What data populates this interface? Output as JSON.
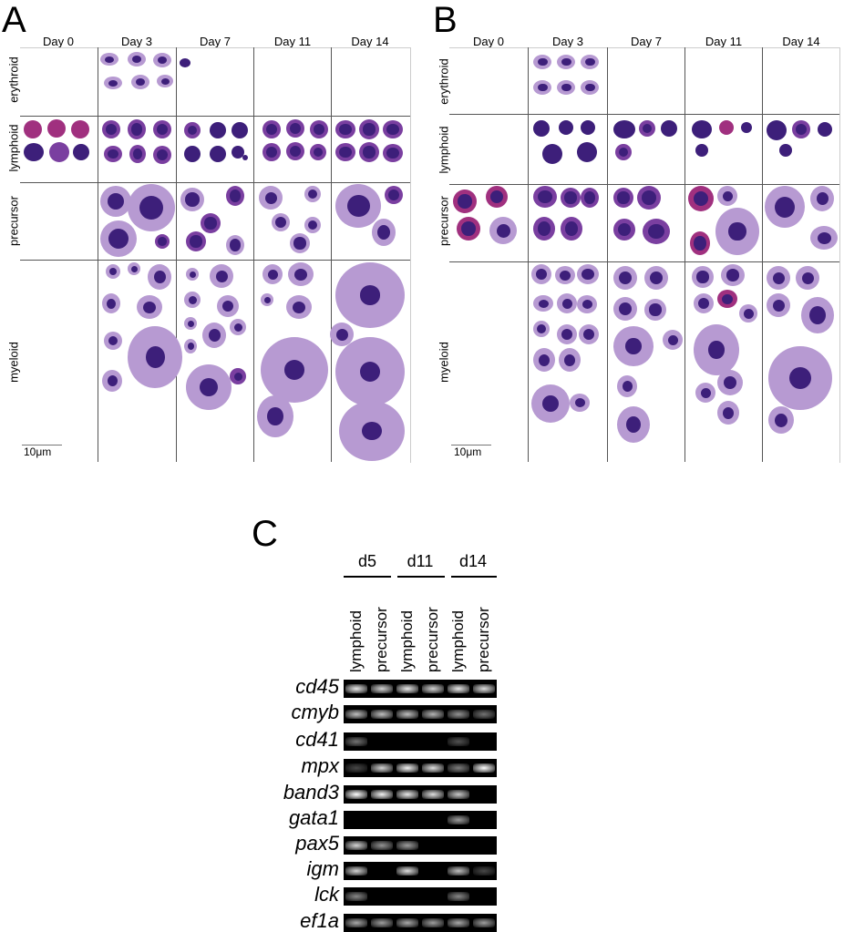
{
  "panels": {
    "A": {
      "letter": "A",
      "columns": [
        "Day 0",
        "Day 3",
        "Day 7",
        "Day 11",
        "Day 14"
      ],
      "rows": [
        "erythroid",
        "lymphoid",
        "precursor",
        "myeloid"
      ],
      "scale_label": "10μm"
    },
    "B": {
      "letter": "B",
      "columns": [
        "Day 0",
        "Day 3",
        "Day 7",
        "Day 11",
        "Day 14"
      ],
      "rows": [
        "erythroid",
        "lymphoid",
        "precursor",
        "myeloid"
      ],
      "scale_label": "10μm"
    },
    "C": {
      "letter": "C",
      "days": [
        "d5",
        "d11",
        "d14"
      ],
      "lanes": [
        "lymphoid",
        "precursor",
        "lymphoid",
        "precursor",
        "lymphoid",
        "precursor"
      ],
      "genes": [
        {
          "name": "cd45",
          "bands": [
            0.9,
            0.8,
            0.9,
            0.8,
            0.9,
            0.85
          ]
        },
        {
          "name": "cmyb",
          "bands": [
            0.7,
            0.7,
            0.7,
            0.65,
            0.5,
            0.35
          ]
        },
        {
          "name": "cd41",
          "bands": [
            0.35,
            0.0,
            0.0,
            0.0,
            0.2,
            0.0
          ]
        },
        {
          "name": "mpx",
          "bands": [
            0.15,
            0.8,
            0.95,
            0.85,
            0.4,
            1.0
          ]
        },
        {
          "name": "band3",
          "bands": [
            1.0,
            0.95,
            0.9,
            0.85,
            0.75,
            0.0
          ]
        },
        {
          "name": "gata1",
          "bands": [
            0.0,
            0.0,
            0.0,
            0.0,
            0.55,
            0.0
          ]
        },
        {
          "name": "pax5",
          "bands": [
            0.8,
            0.5,
            0.55,
            0.0,
            0.0,
            0.0
          ]
        },
        {
          "name": "igm",
          "bands": [
            0.8,
            0.0,
            0.85,
            0.0,
            0.7,
            0.15
          ]
        },
        {
          "name": "lck",
          "bands": [
            0.45,
            0.0,
            0.0,
            0.0,
            0.45,
            0.0
          ]
        },
        {
          "name": "ef1a",
          "bands": [
            0.6,
            0.55,
            0.6,
            0.55,
            0.6,
            0.55
          ]
        }
      ]
    }
  },
  "colors": {
    "stain_dark": "#3d1f7a",
    "stain_mid": "#7a3fa0",
    "stain_light": "#b79ad2",
    "stain_pink": "#a0307f"
  }
}
